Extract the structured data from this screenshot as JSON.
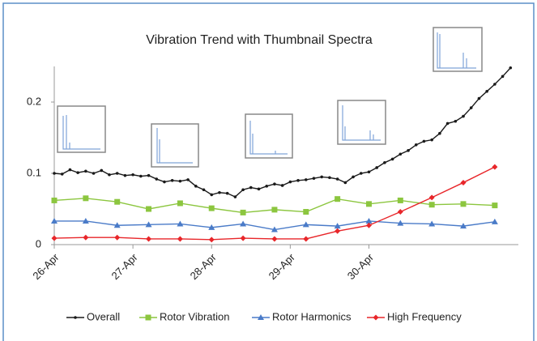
{
  "chart_data": {
    "type": "line",
    "title": "Vibration Trend with Thumbnail Spectra",
    "xlim": [
      0,
      5.9
    ],
    "ylim": [
      0,
      0.25
    ],
    "xticks": [
      {
        "value": 0,
        "label": "26-Apr"
      },
      {
        "value": 1,
        "label": "27-Apr"
      },
      {
        "value": 2,
        "label": "28-Apr"
      },
      {
        "value": 3,
        "label": "29-Apr"
      },
      {
        "value": 4,
        "label": "30-Apr"
      }
    ],
    "yticks": [
      0,
      0.1,
      0.2
    ],
    "series": [
      {
        "name": "Overall",
        "color": "#1a1a1a",
        "marker": "circle",
        "x": [
          0,
          0.1,
          0.2,
          0.3,
          0.4,
          0.5,
          0.6,
          0.7,
          0.8,
          0.9,
          1,
          1.1,
          1.2,
          1.3,
          1.4,
          1.5,
          1.6,
          1.7,
          1.8,
          1.9,
          2,
          2.1,
          2.2,
          2.3,
          2.4,
          2.5,
          2.6,
          2.7,
          2.8,
          2.9,
          3,
          3.1,
          3.2,
          3.3,
          3.4,
          3.5,
          3.6,
          3.7,
          3.8,
          3.9,
          4,
          4.1,
          4.2,
          4.3,
          4.4,
          4.5,
          4.6,
          4.7,
          4.8,
          4.9,
          5,
          5.1,
          5.2,
          5.3,
          5.4,
          5.5,
          5.6,
          5.7,
          5.8
        ],
        "values": [
          0.1,
          0.099,
          0.105,
          0.101,
          0.103,
          0.1,
          0.104,
          0.098,
          0.1,
          0.097,
          0.098,
          0.096,
          0.097,
          0.092,
          0.088,
          0.09,
          0.089,
          0.091,
          0.082,
          0.077,
          0.07,
          0.073,
          0.072,
          0.067,
          0.077,
          0.08,
          0.078,
          0.082,
          0.085,
          0.083,
          0.088,
          0.09,
          0.091,
          0.093,
          0.095,
          0.094,
          0.092,
          0.087,
          0.095,
          0.1,
          0.102,
          0.108,
          0.115,
          0.12,
          0.127,
          0.132,
          0.14,
          0.145,
          0.147,
          0.156,
          0.17,
          0.173,
          0.18,
          0.192,
          0.205,
          0.215,
          0.225,
          0.236,
          0.248
        ]
      },
      {
        "name": "Rotor Vibration",
        "color": "#8cc63f",
        "marker": "square",
        "x": [
          0,
          0.4,
          0.8,
          1.2,
          1.6,
          2,
          2.4,
          2.8,
          3.2,
          3.6,
          4,
          4.4,
          4.8,
          5.2,
          5.6
        ],
        "values": [
          0.062,
          0.065,
          0.06,
          0.05,
          0.058,
          0.051,
          0.045,
          0.049,
          0.046,
          0.064,
          0.057,
          0.062,
          0.056,
          0.057,
          0.055
        ]
      },
      {
        "name": "Rotor Harmonics",
        "color": "#4a7bc8",
        "marker": "triangle",
        "x": [
          0,
          0.4,
          0.8,
          1.2,
          1.6,
          2,
          2.4,
          2.8,
          3.2,
          3.6,
          4,
          4.4,
          4.8,
          5.2,
          5.6
        ],
        "values": [
          0.033,
          0.033,
          0.027,
          0.028,
          0.029,
          0.024,
          0.029,
          0.021,
          0.028,
          0.026,
          0.033,
          0.03,
          0.029,
          0.026,
          0.032
        ]
      },
      {
        "name": "High Frequency",
        "color": "#e8262a",
        "marker": "diamond",
        "x": [
          0,
          0.4,
          0.8,
          1.2,
          1.6,
          2,
          2.4,
          2.8,
          3.2,
          3.6,
          4,
          4.4,
          4.8,
          5.2,
          5.6
        ],
        "values": [
          0.009,
          0.01,
          0.01,
          0.008,
          0.008,
          0.007,
          0.009,
          0.008,
          0.008,
          0.019,
          0.027,
          0.046,
          0.066,
          0.087,
          0.109
        ]
      }
    ]
  }
}
